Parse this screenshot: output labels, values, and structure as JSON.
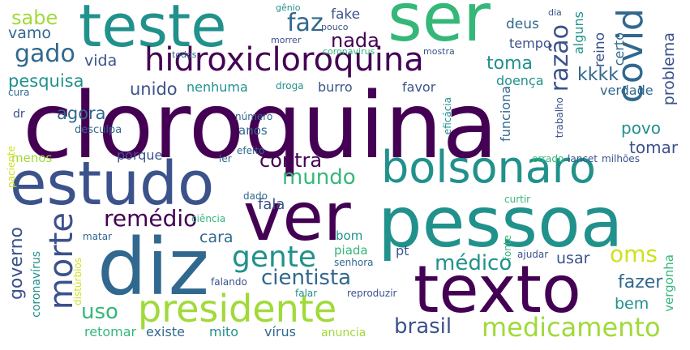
{
  "palette": {
    "dark_purple": "#440154",
    "indigo": "#3b528b",
    "blue": "#31688e",
    "teal": "#21918c",
    "green": "#35b779",
    "lime": "#a0da39",
    "yellow": "#d0e11c"
  },
  "words": [
    {
      "text": "cloroquina",
      "rank": 1.0,
      "color": "#440154",
      "orientation": "horizontal"
    },
    {
      "text": "ser",
      "rank": 0.55,
      "color": "#35b779",
      "orientation": "horizontal"
    },
    {
      "text": "ver",
      "rank": 0.55,
      "color": "#440154",
      "orientation": "horizontal"
    },
    {
      "text": "pessoa",
      "rank": 0.55,
      "color": "#21918c",
      "orientation": "horizontal"
    },
    {
      "text": "diz",
      "rank": 0.55,
      "color": "#31688e",
      "orientation": "horizontal"
    },
    {
      "text": "texto",
      "rank": 0.52,
      "color": "#440154",
      "orientation": "horizontal"
    },
    {
      "text": "teste",
      "rank": 0.5,
      "color": "#21918c",
      "orientation": "horizontal"
    },
    {
      "text": "estudo",
      "rank": 0.5,
      "color": "#3b528b",
      "orientation": "horizontal"
    },
    {
      "text": "bolsonaro",
      "rank": 0.42,
      "color": "#21918c",
      "orientation": "horizontal"
    },
    {
      "text": "presidente",
      "rank": 0.35,
      "color": "#a0da39",
      "orientation": "horizontal"
    },
    {
      "text": "covid",
      "rank": 0.3,
      "color": "#31688e",
      "orientation": "vertical"
    },
    {
      "text": "hidroxicloroquina",
      "rank": 0.28,
      "color": "#440154",
      "orientation": "horizontal"
    },
    {
      "text": "morte",
      "rank": 0.28,
      "color": "#3b528b",
      "orientation": "vertical"
    },
    {
      "text": "gente",
      "rank": 0.25,
      "color": "#21918c",
      "orientation": "horizontal"
    },
    {
      "text": "medicamento",
      "rank": 0.22,
      "color": "#a0da39",
      "orientation": "horizontal"
    },
    {
      "text": "razão",
      "rank": 0.2,
      "color": "#3b528b",
      "orientation": "vertical"
    },
    {
      "text": "gado",
      "rank": 0.18,
      "color": "#31688e",
      "orientation": "horizontal"
    },
    {
      "text": "faz",
      "rank": 0.16,
      "color": "#31688e",
      "orientation": "horizontal"
    },
    {
      "text": "remédio",
      "rank": 0.16,
      "color": "#440154",
      "orientation": "horizontal"
    },
    {
      "text": "oms",
      "rank": 0.15,
      "color": "#d0e11c",
      "orientation": "horizontal"
    },
    {
      "text": "cientista",
      "rank": 0.15,
      "color": "#31688e",
      "orientation": "horizontal"
    },
    {
      "text": "mundo",
      "rank": 0.14,
      "color": "#35b779",
      "orientation": "horizontal"
    },
    {
      "text": "médico",
      "rank": 0.14,
      "color": "#21918c",
      "orientation": "horizontal"
    },
    {
      "text": "brasil",
      "rank": 0.13,
      "color": "#3b528b",
      "orientation": "horizontal"
    },
    {
      "text": "uso",
      "rank": 0.13,
      "color": "#35b779",
      "orientation": "horizontal"
    },
    {
      "text": "governo",
      "rank": 0.12,
      "color": "#3b528b",
      "orientation": "vertical"
    },
    {
      "text": "nada",
      "rank": 0.12,
      "color": "#440154",
      "orientation": "horizontal"
    },
    {
      "text": "sabe",
      "rank": 0.12,
      "color": "#a0da39",
      "orientation": "horizontal"
    },
    {
      "text": "contra",
      "rank": 0.12,
      "color": "#440154",
      "orientation": "horizontal"
    },
    {
      "text": "kkkk",
      "rank": 0.12,
      "color": "#31688e",
      "orientation": "horizontal"
    },
    {
      "text": "toma",
      "rank": 0.12,
      "color": "#21918c",
      "orientation": "horizontal"
    },
    {
      "text": "fazer",
      "rank": 0.12,
      "color": "#31688e",
      "orientation": "horizontal"
    },
    {
      "text": "pesquisa",
      "rank": 0.11,
      "color": "#21918c",
      "orientation": "horizontal"
    },
    {
      "text": "agora",
      "rank": 0.11,
      "color": "#31688e",
      "orientation": "horizontal"
    },
    {
      "text": "unido",
      "rank": 0.11,
      "color": "#3b528b",
      "orientation": "horizontal"
    },
    {
      "text": "vamo",
      "rank": 0.1,
      "color": "#31688e",
      "orientation": "horizontal"
    },
    {
      "text": "vida",
      "rank": 0.1,
      "color": "#3b528b",
      "orientation": "horizontal"
    },
    {
      "text": "povo",
      "rank": 0.1,
      "color": "#21918c",
      "orientation": "horizontal"
    },
    {
      "text": "tomar",
      "rank": 0.1,
      "color": "#3b528b",
      "orientation": "horizontal"
    },
    {
      "text": "cara",
      "rank": 0.1,
      "color": "#31688e",
      "orientation": "horizontal"
    },
    {
      "text": "fala",
      "rank": 0.1,
      "color": "#3b528b",
      "orientation": "horizontal"
    },
    {
      "text": "bem",
      "rank": 0.1,
      "color": "#21918c",
      "orientation": "horizontal"
    },
    {
      "text": "usar",
      "rank": 0.1,
      "color": "#3b528b",
      "orientation": "horizontal"
    },
    {
      "text": "problema",
      "rank": 0.1,
      "color": "#3b528b",
      "orientation": "vertical"
    },
    {
      "text": "verdade",
      "rank": 0.09,
      "color": "#31688e",
      "orientation": "horizontal"
    },
    {
      "text": "deus",
      "rank": 0.09,
      "color": "#31688e",
      "orientation": "horizontal"
    },
    {
      "text": "fake",
      "rank": 0.09,
      "color": "#3b528b",
      "orientation": "horizontal"
    },
    {
      "text": "reino",
      "rank": 0.09,
      "color": "#3b528b",
      "orientation": "vertical"
    },
    {
      "text": "certo",
      "rank": 0.09,
      "color": "#31688e",
      "orientation": "vertical"
    },
    {
      "text": "alguns",
      "rank": 0.09,
      "color": "#21918c",
      "orientation": "vertical"
    },
    {
      "text": "tempo",
      "rank": 0.08,
      "color": "#3b528b",
      "orientation": "horizontal"
    },
    {
      "text": "nenhuma",
      "rank": 0.08,
      "color": "#21918c",
      "orientation": "horizontal"
    },
    {
      "text": "burro",
      "rank": 0.08,
      "color": "#3b528b",
      "orientation": "horizontal"
    },
    {
      "text": "favor",
      "rank": 0.08,
      "color": "#3b528b",
      "orientation": "horizontal"
    },
    {
      "text": "doença",
      "rank": 0.08,
      "color": "#21918c",
      "orientation": "horizontal"
    },
    {
      "text": "porque",
      "rank": 0.08,
      "color": "#3b528b",
      "orientation": "horizontal"
    },
    {
      "text": "menos",
      "rank": 0.08,
      "color": "#a0da39",
      "orientation": "horizontal"
    },
    {
      "text": "anos",
      "rank": 0.08,
      "color": "#31688e",
      "orientation": "horizontal"
    },
    {
      "text": "funciona",
      "rank": 0.08,
      "color": "#31688e",
      "orientation": "vertical"
    },
    {
      "text": "vergonha",
      "rank": 0.08,
      "color": "#35b779",
      "orientation": "vertical"
    },
    {
      "text": "pt",
      "rank": 0.08,
      "color": "#3b528b",
      "orientation": "horizontal"
    },
    {
      "text": "piada",
      "rank": 0.08,
      "color": "#35b779",
      "orientation": "horizontal"
    },
    {
      "text": "bom",
      "rank": 0.08,
      "color": "#21918c",
      "orientation": "horizontal"
    },
    {
      "text": "coronavírus",
      "rank": 0.08,
      "color": "#21918c",
      "orientation": "vertical"
    },
    {
      "text": "retomar",
      "rank": 0.08,
      "color": "#35b779",
      "orientation": "horizontal"
    },
    {
      "text": "existe",
      "rank": 0.08,
      "color": "#31688e",
      "orientation": "horizontal"
    },
    {
      "text": "mito",
      "rank": 0.08,
      "color": "#21918c",
      "orientation": "horizontal"
    },
    {
      "text": "vírus",
      "rank": 0.08,
      "color": "#31688e",
      "orientation": "horizontal"
    },
    {
      "text": "anuncia",
      "rank": 0.07,
      "color": "#a0da39",
      "orientation": "horizontal"
    },
    {
      "text": "desculpa",
      "rank": 0.06,
      "color": "#31688e",
      "orientation": "horizontal"
    },
    {
      "text": "dr",
      "rank": 0.06,
      "color": "#3b528b",
      "orientation": "horizontal"
    },
    {
      "text": "cura",
      "rank": 0.06,
      "color": "#31688e",
      "orientation": "horizontal"
    },
    {
      "text": "droga",
      "rank": 0.06,
      "color": "#21918c",
      "orientation": "horizontal"
    },
    {
      "text": "número",
      "rank": 0.06,
      "color": "#31688e",
      "orientation": "horizontal"
    },
    {
      "text": "eficácia",
      "rank": 0.06,
      "color": "#21918c",
      "orientation": "vertical"
    },
    {
      "text": "trabalho",
      "rank": 0.06,
      "color": "#3b528b",
      "orientation": "vertical"
    },
    {
      "text": "lancet",
      "rank": 0.06,
      "color": "#3b528b",
      "orientation": "horizontal"
    },
    {
      "text": "milhões",
      "rank": 0.06,
      "color": "#3b528b",
      "orientation": "horizontal"
    },
    {
      "text": "errado",
      "rank": 0.06,
      "color": "#35b779",
      "orientation": "horizontal"
    },
    {
      "text": "ler",
      "rank": 0.06,
      "color": "#31688e",
      "orientation": "horizontal"
    },
    {
      "text": "efeito",
      "rank": 0.06,
      "color": "#31688e",
      "orientation": "horizontal"
    },
    {
      "text": "dado",
      "rank": 0.06,
      "color": "#31688e",
      "orientation": "horizontal"
    },
    {
      "text": "curtir",
      "rank": 0.06,
      "color": "#35b779",
      "orientation": "horizontal"
    },
    {
      "text": "ciência",
      "rank": 0.06,
      "color": "#35b779",
      "orientation": "horizontal"
    },
    {
      "text": "matar",
      "rank": 0.06,
      "color": "#31688e",
      "orientation": "horizontal"
    },
    {
      "text": "distúrbios",
      "rank": 0.06,
      "color": "#d0e11c",
      "orientation": "vertical"
    },
    {
      "text": "paciente",
      "rank": 0.06,
      "color": "#d0e11c",
      "orientation": "vertical"
    },
    {
      "text": "falando",
      "rank": 0.06,
      "color": "#3b528b",
      "orientation": "horizontal"
    },
    {
      "text": "falar",
      "rank": 0.06,
      "color": "#21918c",
      "orientation": "horizontal"
    },
    {
      "text": "reproduzir",
      "rank": 0.06,
      "color": "#3b528b",
      "orientation": "horizontal"
    },
    {
      "text": "senhora",
      "rank": 0.06,
      "color": "#31688e",
      "orientation": "horizontal"
    },
    {
      "text": "ajudar",
      "rank": 0.06,
      "color": "#3b528b",
      "orientation": "horizontal"
    },
    {
      "text": "fonte",
      "rank": 0.06,
      "color": "#35b779",
      "orientation": "vertical"
    },
    {
      "text": "gênio",
      "rank": 0.05,
      "color": "#21918c",
      "orientation": "horizontal"
    },
    {
      "text": "pouco",
      "rank": 0.05,
      "color": "#3b528b",
      "orientation": "horizontal"
    },
    {
      "text": "morrer",
      "rank": 0.05,
      "color": "#3b528b",
      "orientation": "horizontal"
    },
    {
      "text": "dia",
      "rank": 0.05,
      "color": "#3b528b",
      "orientation": "horizontal"
    },
    {
      "text": "mostra",
      "rank": 0.05,
      "color": "#3b528b",
      "orientation": "horizontal"
    },
    {
      "text": "coronavirus",
      "rank": 0.05,
      "color": "#35b779",
      "orientation": "horizontal"
    },
    {
      "text": "todos",
      "rank": 0.05,
      "color": "#31688e",
      "orientation": "horizontal"
    }
  ]
}
